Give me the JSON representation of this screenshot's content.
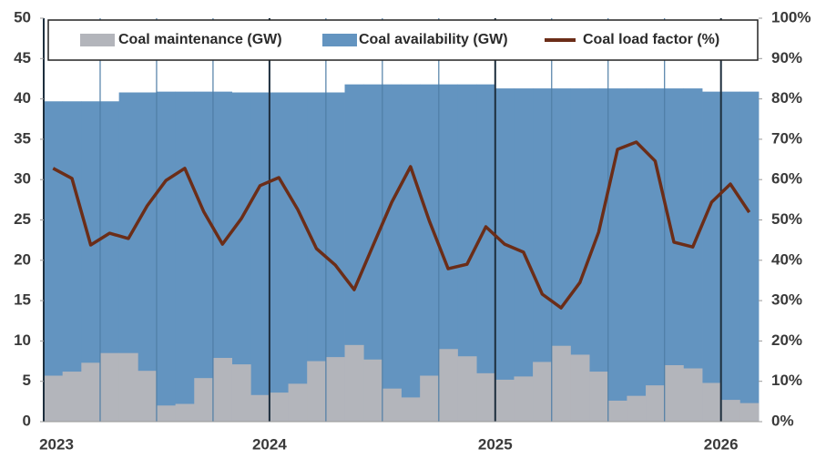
{
  "chart_data": {
    "type": "combo",
    "categories": [
      "2023",
      null,
      null,
      null,
      null,
      null,
      null,
      null,
      null,
      null,
      null,
      null,
      "2024",
      null,
      null,
      null,
      null,
      null,
      null,
      null,
      null,
      null,
      null,
      null,
      "2025",
      null,
      null,
      null,
      null,
      null,
      null,
      null,
      null,
      null,
      null,
      null,
      "2026",
      null
    ],
    "series": [
      {
        "name": "Coal maintenance (GW)",
        "color": "#b3b5bb",
        "kind": "step-area",
        "axis": "y",
        "values": [
          5.7,
          6.2,
          7.3,
          8.5,
          8.5,
          6.3,
          2.0,
          2.2,
          5.4,
          7.9,
          7.1,
          3.3,
          3.6,
          4.7,
          7.5,
          8.0,
          9.5,
          7.7,
          4.1,
          3.0,
          5.7,
          9.0,
          8.1,
          6.0,
          5.2,
          5.6,
          7.4,
          9.4,
          8.3,
          6.2,
          2.6,
          3.2,
          4.5,
          7.0,
          6.6,
          4.8,
          2.7,
          2.3
        ]
      },
      {
        "name": "Coal availability (GW)",
        "color": "#6394c0",
        "kind": "step-area",
        "axis": "y",
        "values": [
          39.7,
          39.7,
          39.7,
          39.7,
          40.8,
          40.8,
          40.9,
          40.9,
          40.9,
          40.9,
          40.8,
          40.8,
          40.8,
          40.8,
          40.8,
          40.8,
          41.8,
          41.8,
          41.8,
          41.8,
          41.8,
          41.8,
          41.8,
          41.8,
          41.3,
          41.3,
          41.3,
          41.3,
          41.3,
          41.3,
          41.3,
          41.3,
          41.3,
          41.3,
          41.3,
          40.9,
          40.9,
          40.9
        ]
      },
      {
        "name": "Coal load factor (%)",
        "color": "#6b2d18",
        "kind": "line",
        "axis": "y2",
        "values": [
          62.8,
          60.3,
          43.8,
          46.7,
          45.4,
          53.5,
          59.8,
          62.8,
          52.1,
          44.0,
          50.3,
          58.5,
          60.5,
          52.6,
          42.9,
          38.8,
          32.7,
          43.6,
          54.4,
          63.2,
          49.7,
          37.9,
          39.0,
          48.3,
          44.0,
          42.0,
          31.6,
          28.2,
          34.5,
          47.0,
          67.5,
          69.3,
          64.6,
          44.5,
          43.3,
          54.4,
          58.9,
          51.9
        ]
      }
    ],
    "ylim": [
      0,
      50
    ],
    "yticks": [
      0,
      5,
      10,
      15,
      20,
      25,
      30,
      35,
      40,
      45,
      50
    ],
    "y2lim": [
      0,
      100
    ],
    "y2ticks": [
      {
        "value": 0,
        "label": "0%"
      },
      {
        "value": 10,
        "label": "10%"
      },
      {
        "value": 20,
        "label": "20%"
      },
      {
        "value": 30,
        "label": "30%"
      },
      {
        "value": 40,
        "label": "40%"
      },
      {
        "value": 50,
        "label": "50%"
      },
      {
        "value": 60,
        "label": "60%"
      },
      {
        "value": 70,
        "label": "70%"
      },
      {
        "value": 80,
        "label": "80%"
      },
      {
        "value": 90,
        "label": "90%"
      },
      {
        "value": 100,
        "label": "100%"
      }
    ],
    "legend": "top"
  }
}
